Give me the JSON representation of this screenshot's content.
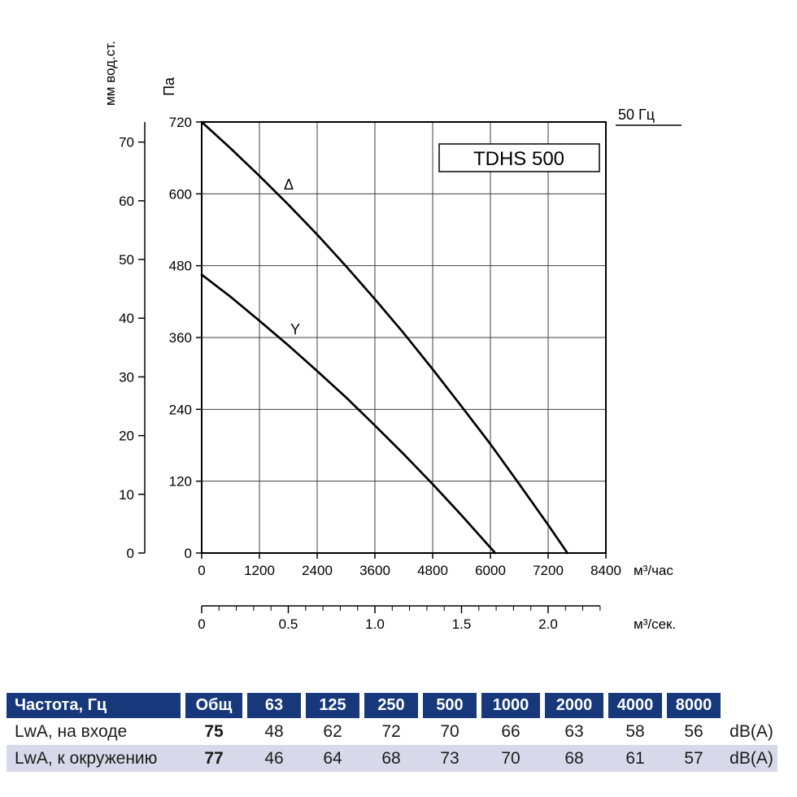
{
  "chart": {
    "model_label": "TDHS 500",
    "frequency_label": "50 Гц",
    "curve_labels": {
      "delta": "Δ",
      "y": "Y"
    },
    "y_axis_pa": {
      "unit": "Па",
      "ticks": [
        0,
        120,
        240,
        360,
        480,
        600,
        720
      ]
    },
    "y_axis_mm": {
      "unit": "мм вод.ст.",
      "ticks": [
        0,
        10,
        20,
        30,
        40,
        50,
        60,
        70
      ]
    },
    "x_axis_m3h": {
      "unit": "м³/час",
      "ticks": [
        0,
        1200,
        2400,
        3600,
        4800,
        6000,
        7200,
        8400
      ]
    },
    "x_axis_m3s": {
      "unit": "м³/сек.",
      "ticks": [
        "0",
        "0.5",
        "1.0",
        "1.5",
        "2.0"
      ]
    }
  },
  "chart_data": {
    "type": "line",
    "title": "TDHS 500",
    "xlabel": "м³/час",
    "ylabel": "Па",
    "x2label": "м³/сек.",
    "y2label": "мм вод.ст.",
    "xlim": [
      0,
      8400
    ],
    "ylim": [
      0,
      720
    ],
    "x2lim": [
      0,
      2.3
    ],
    "y2lim": [
      0,
      73.4
    ],
    "grid": true,
    "legend_note": "50 Гц",
    "series": [
      {
        "name": "Δ",
        "points": [
          [
            0,
            720
          ],
          [
            600,
            676
          ],
          [
            1200,
            630
          ],
          [
            1800,
            582
          ],
          [
            2400,
            532
          ],
          [
            3000,
            479
          ],
          [
            3600,
            424
          ],
          [
            4200,
            367
          ],
          [
            4800,
            307
          ],
          [
            5400,
            245
          ],
          [
            6000,
            182
          ],
          [
            6600,
            115
          ],
          [
            7200,
            47
          ],
          [
            7600,
            0
          ]
        ]
      },
      {
        "name": "Y",
        "points": [
          [
            0,
            465
          ],
          [
            600,
            428
          ],
          [
            1200,
            388
          ],
          [
            1800,
            347
          ],
          [
            2400,
            304
          ],
          [
            3000,
            260
          ],
          [
            3600,
            213
          ],
          [
            4200,
            165
          ],
          [
            4800,
            115
          ],
          [
            5400,
            63
          ],
          [
            6100,
            0
          ]
        ]
      }
    ]
  },
  "table": {
    "header": [
      "Частота, Гц",
      "Общ",
      "63",
      "125",
      "250",
      "500",
      "1000",
      "2000",
      "4000",
      "8000",
      ""
    ],
    "rows": [
      {
        "label": "LwA, на входе",
        "total": "75",
        "values": [
          "48",
          "62",
          "72",
          "70",
          "66",
          "63",
          "58",
          "56"
        ],
        "unit": "dB(A)"
      },
      {
        "label": "LwA, к окружению",
        "total": "77",
        "values": [
          "46",
          "64",
          "68",
          "73",
          "70",
          "68",
          "61",
          "57"
        ],
        "unit": "dB(A)"
      }
    ]
  },
  "colors": {
    "header_blue": "#17387b",
    "row_lavender": "#d8d8eb",
    "curve_black": "#000000",
    "grid_gray": "#3f3f3f"
  }
}
